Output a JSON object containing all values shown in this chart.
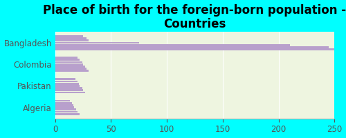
{
  "title": "Place of birth for the foreign-born population -\nCountries",
  "categories": [
    "Bangladesh",
    "Colombia",
    "Pakistan",
    "Algeria"
  ],
  "groups": [
    [
      250,
      245,
      210,
      75,
      30,
      28,
      25
    ],
    [
      30,
      28,
      27,
      25,
      24,
      22,
      20
    ],
    [
      27,
      25,
      24,
      22,
      21,
      20,
      18
    ],
    [
      22,
      20,
      19,
      17,
      16,
      15,
      13
    ]
  ],
  "bar_color": "#b8a0cc",
  "background_outer": "#00ffff",
  "background_inner": "#eef5e0",
  "grid_color": "#ffffff",
  "xlim": [
    0,
    250
  ],
  "xticks": [
    0,
    50,
    100,
    150,
    200,
    250
  ],
  "title_fontsize": 12,
  "label_fontsize": 8.5,
  "tick_fontsize": 8.5
}
